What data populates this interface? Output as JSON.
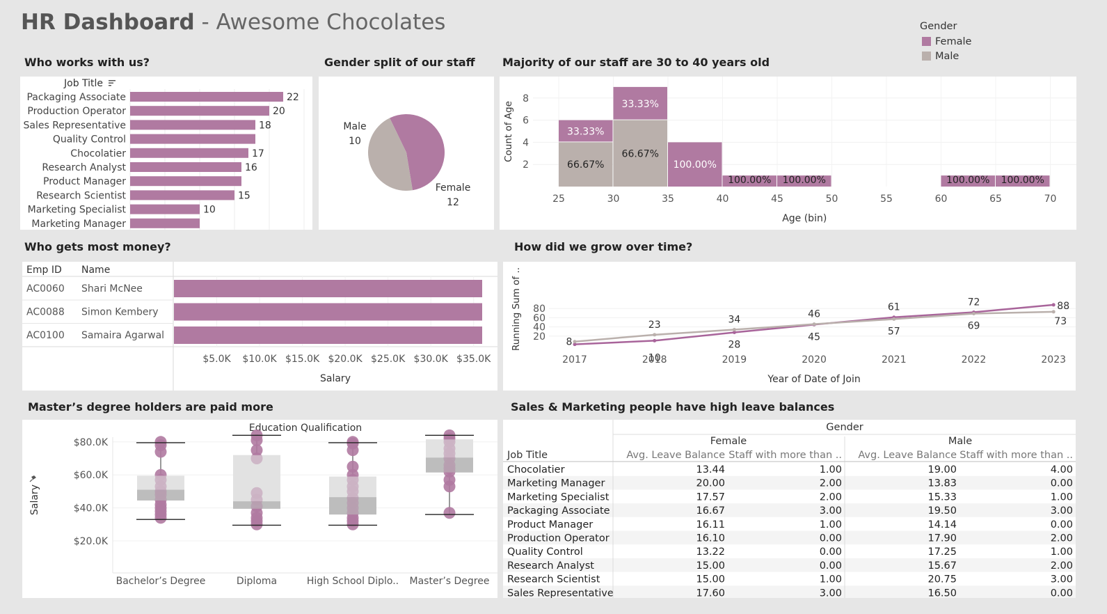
{
  "header": {
    "title_bold": "HR Dashboard",
    "title_rest": " - Awesome Chocolates"
  },
  "colors": {
    "female": "#b07aa1",
    "male": "#bab0ac",
    "bg": "#e6e6e6",
    "line_female": "#a8649a"
  },
  "legend": {
    "title": "Gender",
    "items": [
      "Female",
      "Male"
    ]
  },
  "sections": {
    "job_title": "Who works with us?",
    "gender_split": "Gender split of our staff",
    "age": "Majority of our staff are 30 to 40 years old",
    "money": "Who gets most money?",
    "growth": "How did we grow over time?",
    "degree": "Master’s degree holders are paid more",
    "leave": "Sales & Marketing people have high leave balances"
  },
  "job_chart": {
    "header": "Job Title",
    "sort_icon": "sort-desc-icon",
    "rows": [
      {
        "label": "Packaging Associate",
        "value": 22,
        "show": "22"
      },
      {
        "label": "Production Operator",
        "value": 20,
        "show": "20"
      },
      {
        "label": "Sales Representative",
        "value": 18,
        "show": "18"
      },
      {
        "label": "Quality Control",
        "value": 18,
        "show": ""
      },
      {
        "label": "Chocolatier",
        "value": 17,
        "show": "17"
      },
      {
        "label": "Research Analyst",
        "value": 16,
        "show": "16"
      },
      {
        "label": "Product Manager",
        "value": 16,
        "show": ""
      },
      {
        "label": "Research Scientist",
        "value": 15,
        "show": "15"
      },
      {
        "label": "Marketing Specialist",
        "value": 10,
        "show": "10"
      },
      {
        "label": "Marketing Manager",
        "value": 10,
        "show": ""
      }
    ]
  },
  "chart_data": [
    {
      "type": "bar",
      "orientation": "horizontal",
      "categories": [
        "Packaging Associate",
        "Production Operator",
        "Sales Representative",
        "Quality Control",
        "Chocolatier",
        "Research Analyst",
        "Product Manager",
        "Research Scientist",
        "Marketing Specialist",
        "Marketing Manager"
      ],
      "values": [
        22,
        20,
        18,
        18,
        17,
        16,
        16,
        15,
        10,
        10
      ],
      "xlabel": "",
      "ylabel": "Job Title"
    },
    {
      "type": "pie",
      "slices": [
        {
          "name": "Female",
          "value": 12
        },
        {
          "name": "Male",
          "value": 10
        }
      ]
    },
    {
      "type": "bar",
      "stacked": true,
      "x_bins": [
        25,
        30,
        35,
        40,
        45,
        60,
        65
      ],
      "bin_width": 5,
      "series": [
        {
          "name": "Male",
          "values": [
            4,
            6,
            0,
            0,
            0,
            0,
            0
          ]
        },
        {
          "name": "Female",
          "values": [
            2,
            3,
            4,
            1,
            1,
            1,
            1
          ]
        }
      ],
      "labels": {
        "male": [
          "66.67%",
          "66.67%",
          "",
          "",
          "",
          "",
          ""
        ],
        "female": [
          "33.33%",
          "33.33%",
          "100.00%",
          "100.00%",
          "100.00%",
          "100.00%",
          "100.00%"
        ]
      },
      "xlabel": "Age (bin)",
      "ylabel": "Count of Age",
      "xticks": [
        25,
        30,
        35,
        40,
        45,
        50,
        55,
        60,
        65,
        70
      ],
      "yticks": [
        2,
        4,
        6,
        8
      ],
      "ylim": [
        0,
        9
      ],
      "xlim": [
        22,
        72
      ]
    },
    {
      "type": "bar",
      "orientation": "horizontal",
      "table_columns": [
        "Emp ID",
        "Name"
      ],
      "rows": [
        {
          "id": "AC0060",
          "name": "Shari McNee",
          "value": 36000
        },
        {
          "id": "AC0088",
          "name": "Simon Kembery",
          "value": 36000
        },
        {
          "id": "AC0100",
          "name": "Samaira Agarwal",
          "value": 36000
        }
      ],
      "xticks": [
        "$5.0K",
        "$10.0K",
        "$15.0K",
        "$20.0K",
        "$25.0K",
        "$30.0K",
        "$35.0K"
      ],
      "xtick_values": [
        5000,
        10000,
        15000,
        20000,
        25000,
        30000,
        35000
      ],
      "xlabel": "Salary"
    },
    {
      "type": "line",
      "x": [
        2017,
        2018,
        2019,
        2020,
        2021,
        2022,
        2023
      ],
      "series": [
        {
          "name": "Female",
          "values": [
            2,
            10,
            28,
            45,
            61,
            72,
            88
          ],
          "labels": [
            "",
            "10",
            "28",
            "45",
            "61",
            "72",
            "88"
          ]
        },
        {
          "name": "Male",
          "values": [
            8,
            23,
            34,
            46,
            57,
            69,
            73
          ],
          "labels": [
            "8",
            "23",
            "34",
            "46",
            "57",
            "69",
            "73"
          ]
        }
      ],
      "xlabel": "Year of Date of Join",
      "ylabel": "Running Sum of ..",
      "yticks": [
        20,
        40,
        60,
        80
      ],
      "ylim": [
        0,
        92
      ]
    },
    {
      "type": "boxplot",
      "title": "Education Qualification",
      "categories": [
        "Bachelor’s Degree",
        "Diploma",
        "High School Diplo..",
        "Master’s Degree"
      ],
      "ylabel": "Salary",
      "yticks": [
        "$20.0K",
        "$40.0K",
        "$60.0K",
        "$80.0K"
      ],
      "ytick_values": [
        20000,
        40000,
        60000,
        80000
      ],
      "ylim": [
        8000,
        86000
      ],
      "boxes": [
        {
          "min": 33000,
          "q1": 44500,
          "median": 51000,
          "q3": 59500,
          "max": 79500,
          "points": [
            34000,
            36000,
            38000,
            40000,
            42000,
            45000,
            48000,
            50000,
            53000,
            57000,
            60000,
            74000,
            78000,
            80000
          ]
        },
        {
          "min": 29500,
          "q1": 39500,
          "median": 44000,
          "q3": 72000,
          "max": 84000,
          "points": [
            30000,
            32000,
            34000,
            37000,
            41000,
            45000,
            49000,
            70000,
            75000,
            81000,
            84000
          ]
        },
        {
          "min": 29500,
          "q1": 36000,
          "median": 46500,
          "q3": 59000,
          "max": 79500,
          "points": [
            30000,
            32000,
            34000,
            37000,
            40000,
            43000,
            46000,
            50000,
            53000,
            57000,
            60000,
            65000,
            75000,
            79000,
            80000
          ]
        },
        {
          "min": 36000,
          "q1": 61500,
          "median": 70500,
          "q3": 81500,
          "max": 84000,
          "points": [
            37000,
            53000,
            57000,
            62000,
            64000,
            66000,
            70000,
            73000,
            76000,
            80000,
            82000,
            84000
          ]
        }
      ]
    },
    {
      "type": "table",
      "group_header": "Gender",
      "row_header": "Job Title",
      "groups": [
        "Female",
        "Male"
      ],
      "columns": [
        "Avg. Leave Balance",
        "Staff with more than .."
      ],
      "rows": [
        {
          "job": "Chocolatier",
          "f_avg": "13.44",
          "f_staff": "1.00",
          "m_avg": "19.00",
          "m_staff": "4.00"
        },
        {
          "job": "Marketing Manager",
          "f_avg": "20.00",
          "f_staff": "2.00",
          "m_avg": "13.83",
          "m_staff": "0.00"
        },
        {
          "job": "Marketing Specialist",
          "f_avg": "17.57",
          "f_staff": "2.00",
          "m_avg": "15.33",
          "m_staff": "1.00"
        },
        {
          "job": "Packaging Associate",
          "f_avg": "16.67",
          "f_staff": "3.00",
          "m_avg": "19.50",
          "m_staff": "3.00"
        },
        {
          "job": "Product Manager",
          "f_avg": "16.11",
          "f_staff": "1.00",
          "m_avg": "14.14",
          "m_staff": "0.00"
        },
        {
          "job": "Production Operator",
          "f_avg": "16.10",
          "f_staff": "0.00",
          "m_avg": "17.90",
          "m_staff": "2.00"
        },
        {
          "job": "Quality Control",
          "f_avg": "13.22",
          "f_staff": "0.00",
          "m_avg": "17.25",
          "m_staff": "1.00"
        },
        {
          "job": "Research Analyst",
          "f_avg": "15.00",
          "f_staff": "0.00",
          "m_avg": "15.67",
          "m_staff": "2.00"
        },
        {
          "job": "Research Scientist",
          "f_avg": "15.00",
          "f_staff": "1.00",
          "m_avg": "20.75",
          "m_staff": "3.00"
        },
        {
          "job": "Sales Representative",
          "f_avg": "17.60",
          "f_staff": "3.00",
          "m_avg": "16.50",
          "m_staff": "0.00"
        }
      ]
    }
  ]
}
